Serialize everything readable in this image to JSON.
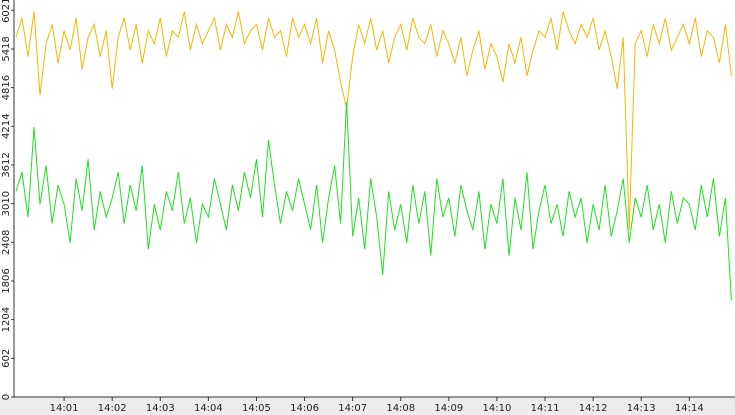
{
  "chart_data": {
    "type": "line",
    "x": [
      0,
      0.125,
      0.25,
      0.375,
      0.5,
      0.625,
      0.75,
      0.875,
      1,
      1.125,
      1.25,
      1.375,
      1.5,
      1.625,
      1.75,
      1.875,
      2,
      2.125,
      2.25,
      2.375,
      2.5,
      2.625,
      2.75,
      2.875,
      3,
      3.125,
      3.25,
      3.375,
      3.5,
      3.625,
      3.75,
      3.875,
      4,
      4.125,
      4.25,
      4.375,
      4.5,
      4.625,
      4.75,
      4.875,
      5,
      5.125,
      5.25,
      5.375,
      5.5,
      5.625,
      5.75,
      5.875,
      6,
      6.125,
      6.25,
      6.375,
      6.5,
      6.625,
      6.75,
      6.875,
      7,
      7.125,
      7.25,
      7.375,
      7.5,
      7.625,
      7.75,
      7.875,
      8,
      8.125,
      8.25,
      8.375,
      8.5,
      8.625,
      8.75,
      8.875,
      9,
      9.125,
      9.25,
      9.375,
      9.5,
      9.625,
      9.75,
      9.875,
      10,
      10.125,
      10.25,
      10.375,
      10.5,
      10.625,
      10.75,
      10.875,
      11,
      11.125,
      11.25,
      11.375,
      11.5,
      11.625,
      11.75,
      11.875,
      12,
      12.125,
      12.25,
      12.375,
      12.5,
      12.625,
      12.75,
      12.875,
      13,
      13.125,
      13.25,
      13.375,
      13.5,
      13.625,
      13.75,
      13.875,
      14,
      14.125,
      14.25,
      14.375,
      14.5,
      14.625,
      14.75,
      14.875
    ],
    "series": [
      {
        "color": "#f2b705",
        "values": [
          5600,
          5900,
          5300,
          6000,
          4700,
          5500,
          5800,
          5200,
          5700,
          5400,
          5900,
          5100,
          5600,
          5800,
          5300,
          5700,
          4800,
          5600,
          5900,
          5400,
          5800,
          5200,
          5700,
          5500,
          5900,
          5300,
          5700,
          5600,
          6000,
          5400,
          5800,
          5500,
          5700,
          5900,
          5400,
          5800,
          5600,
          6000,
          5500,
          5700,
          5800,
          5400,
          5900,
          5600,
          5700,
          5300,
          5900,
          5600,
          5800,
          5500,
          5900,
          5200,
          5700,
          5400,
          4900,
          4500,
          5300,
          5800,
          5500,
          5900,
          5400,
          5700,
          5200,
          5600,
          5800,
          5400,
          5900,
          5600,
          5500,
          5800,
          5300,
          5700,
          5500,
          5200,
          5600,
          5000,
          5400,
          5700,
          5100,
          5500,
          5300,
          4900,
          5500,
          5200,
          5600,
          5000,
          5400,
          5700,
          5600,
          5900,
          5400,
          6000,
          5700,
          5500,
          5800,
          5600,
          5900,
          5400,
          5700,
          5300,
          4800,
          5600,
          2600,
          5500,
          5700,
          5300,
          5800,
          5500,
          5900,
          5400,
          5600,
          5800,
          5500,
          5900,
          5300,
          5700,
          5600,
          5200,
          5800,
          5000
        ]
      },
      {
        "color": "#1fe01f",
        "values": [
          3200,
          3500,
          2800,
          4200,
          3000,
          3600,
          2700,
          3300,
          3000,
          2400,
          3400,
          2900,
          3700,
          2600,
          3200,
          2800,
          3100,
          3500,
          2700,
          3300,
          2900,
          3600,
          2300,
          3000,
          2600,
          3200,
          2900,
          3500,
          2700,
          3100,
          2400,
          3000,
          2800,
          3400,
          3000,
          2600,
          3300,
          2900,
          3500,
          3100,
          3700,
          2800,
          4000,
          3300,
          2700,
          3200,
          2900,
          3400,
          3000,
          2600,
          3300,
          2400,
          3100,
          3600,
          2700,
          4600,
          2500,
          3100,
          2300,
          3400,
          2800,
          1900,
          3200,
          2600,
          3000,
          2400,
          3300,
          2700,
          3200,
          2200,
          3400,
          2800,
          3100,
          2500,
          3300,
          2900,
          2600,
          3200,
          2300,
          3000,
          2700,
          3400,
          2200,
          3100,
          2600,
          3500,
          2300,
          2900,
          3300,
          2700,
          3000,
          2500,
          3200,
          2800,
          3100,
          2400,
          3000,
          2600,
          3300,
          2500,
          2900,
          3400,
          2400,
          3100,
          2800,
          3300,
          2600,
          3000,
          2400,
          3200,
          2700,
          3100,
          3000,
          2600,
          3300,
          2800,
          3400,
          2500,
          3100,
          1500
        ]
      }
    ],
    "xlim": [
      0,
      14.95
    ],
    "ylim": [
      0,
      6180
    ],
    "xticks": [
      {
        "value": 1,
        "label": "14:01"
      },
      {
        "value": 2,
        "label": "14:02"
      },
      {
        "value": 3,
        "label": "14:03"
      },
      {
        "value": 4,
        "label": "14:04"
      },
      {
        "value": 5,
        "label": "14:05"
      },
      {
        "value": 6,
        "label": "14:06"
      },
      {
        "value": 7,
        "label": "14:07"
      },
      {
        "value": 8,
        "label": "14:08"
      },
      {
        "value": 9,
        "label": "14:09"
      },
      {
        "value": 10,
        "label": "14:10"
      },
      {
        "value": 11,
        "label": "14:11"
      },
      {
        "value": 12,
        "label": "14:12"
      },
      {
        "value": 13,
        "label": "14:13"
      },
      {
        "value": 14,
        "label": "14:14"
      }
    ],
    "yticks": [
      0,
      602,
      1204,
      1806,
      2408,
      3010,
      3612,
      4214,
      4816,
      5418,
      6021
    ]
  }
}
